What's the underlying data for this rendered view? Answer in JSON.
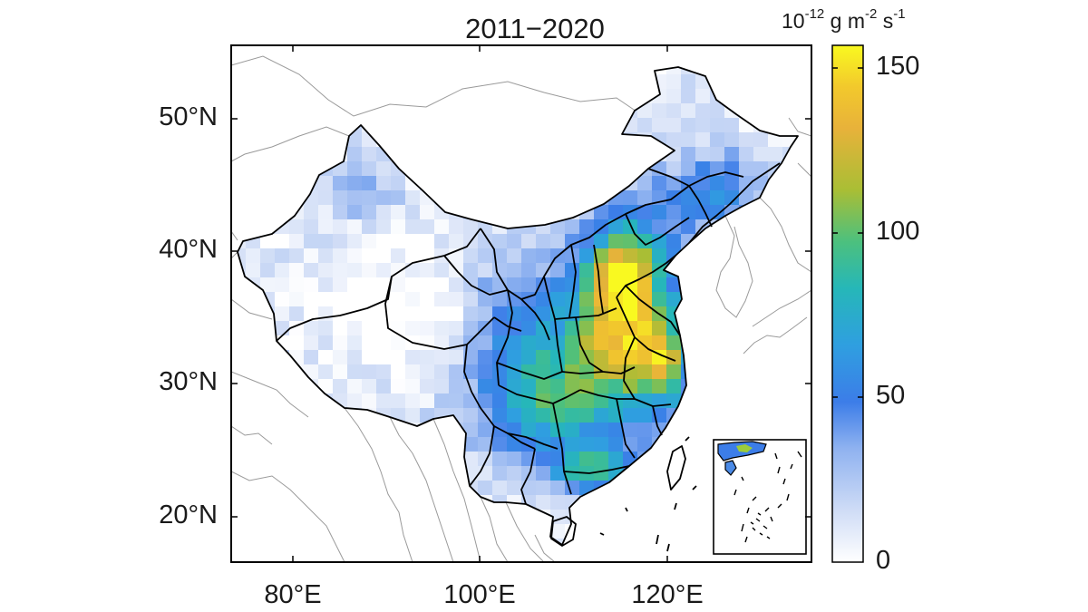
{
  "map": {
    "title": "2011−2020",
    "latitude_labels": [
      "50°N",
      "40°N",
      "30°N",
      "20°N"
    ],
    "longitude_labels": [
      "80°E",
      "100°E",
      "120°E"
    ],
    "extent": {
      "lon": [
        73,
        135
      ],
      "lat": [
        18,
        55
      ]
    }
  },
  "colorbar": {
    "unit_parts": [
      "10",
      "-12",
      " g m",
      "-2",
      " s",
      "-1"
    ],
    "tick_labels": [
      "150",
      "100",
      "50",
      "0"
    ],
    "range": [
      0,
      160
    ],
    "colors": [
      "#ffffff",
      "#3c7de8",
      "#26b7b8",
      "#e8b23a",
      "#f9f920"
    ]
  }
}
